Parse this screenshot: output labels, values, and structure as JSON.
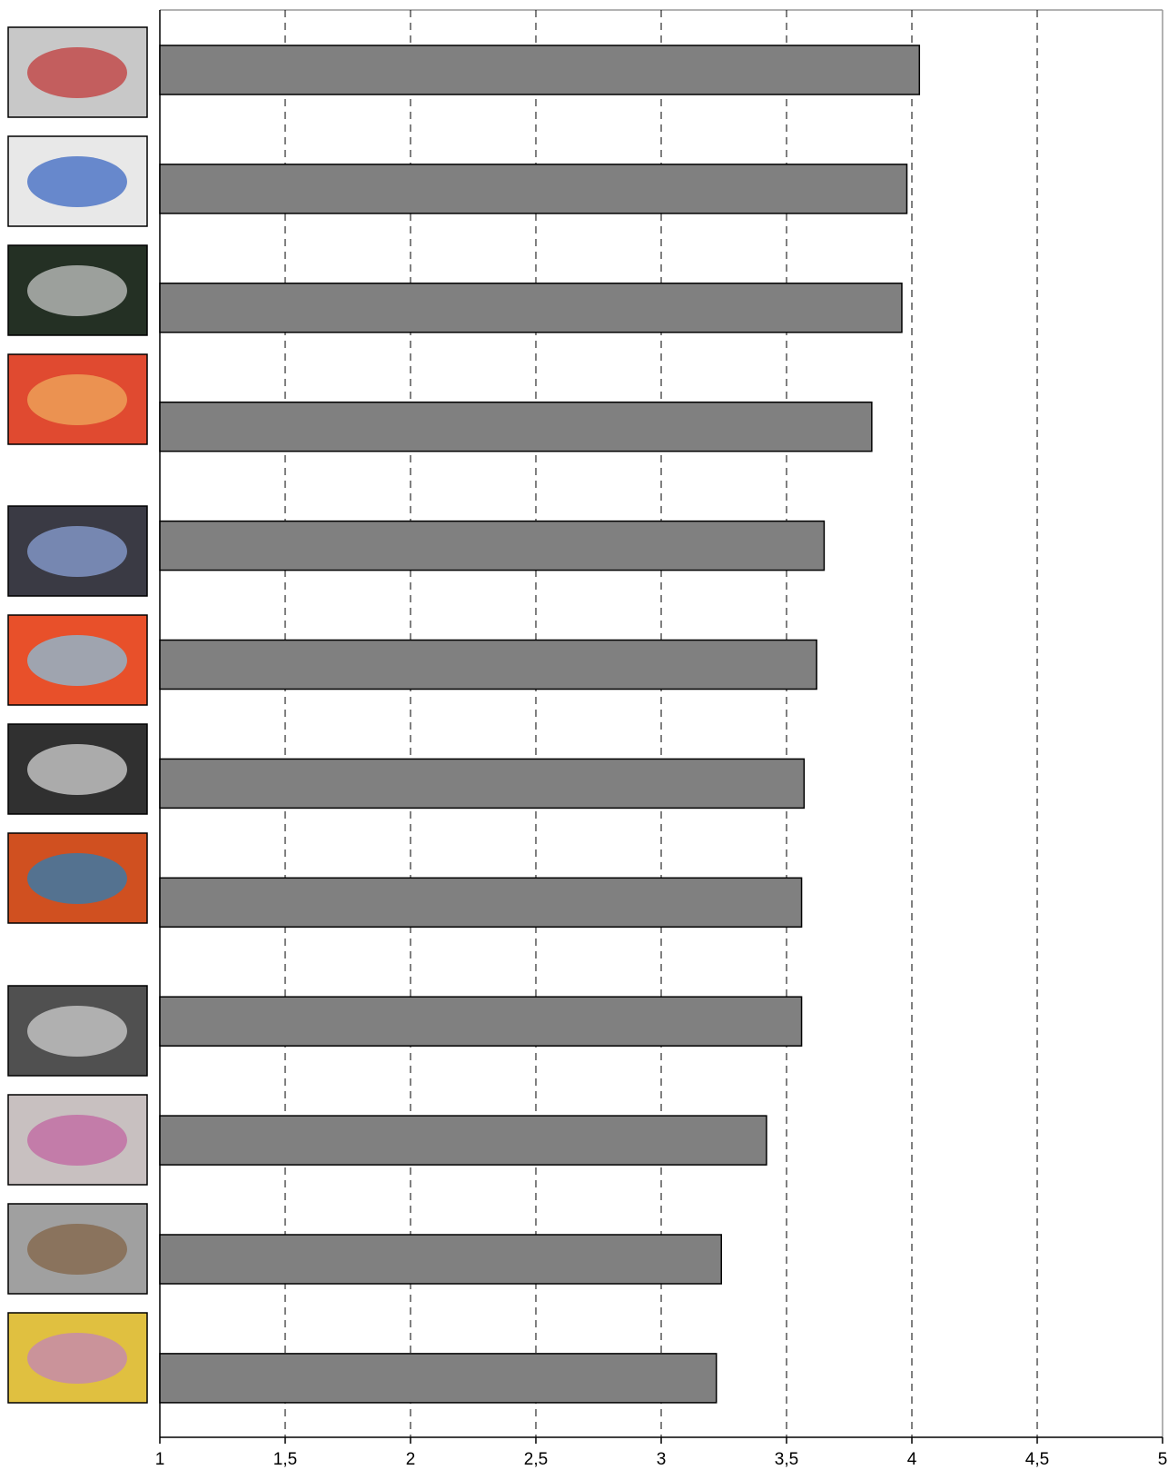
{
  "chart_data": {
    "type": "bar",
    "orientation": "horizontal",
    "categories": [
      null,
      null,
      null,
      null,
      null,
      null,
      null,
      null,
      null,
      null,
      null,
      null
    ],
    "values": [
      4.03,
      3.98,
      3.96,
      3.84,
      3.65,
      3.62,
      3.57,
      3.56,
      3.56,
      3.42,
      3.24,
      3.22
    ],
    "color": "#808080",
    "xlim": [
      1,
      5
    ],
    "xticks": [
      1,
      {
        "value": 1.5,
        "label": "1,5"
      },
      2,
      {
        "value": 2.5,
        "label": "2,5"
      },
      3,
      {
        "value": 3.5,
        "label": "3,5"
      },
      4,
      {
        "value": 4.5,
        "label": "4,5"
      },
      5
    ],
    "grid": true
  }
}
